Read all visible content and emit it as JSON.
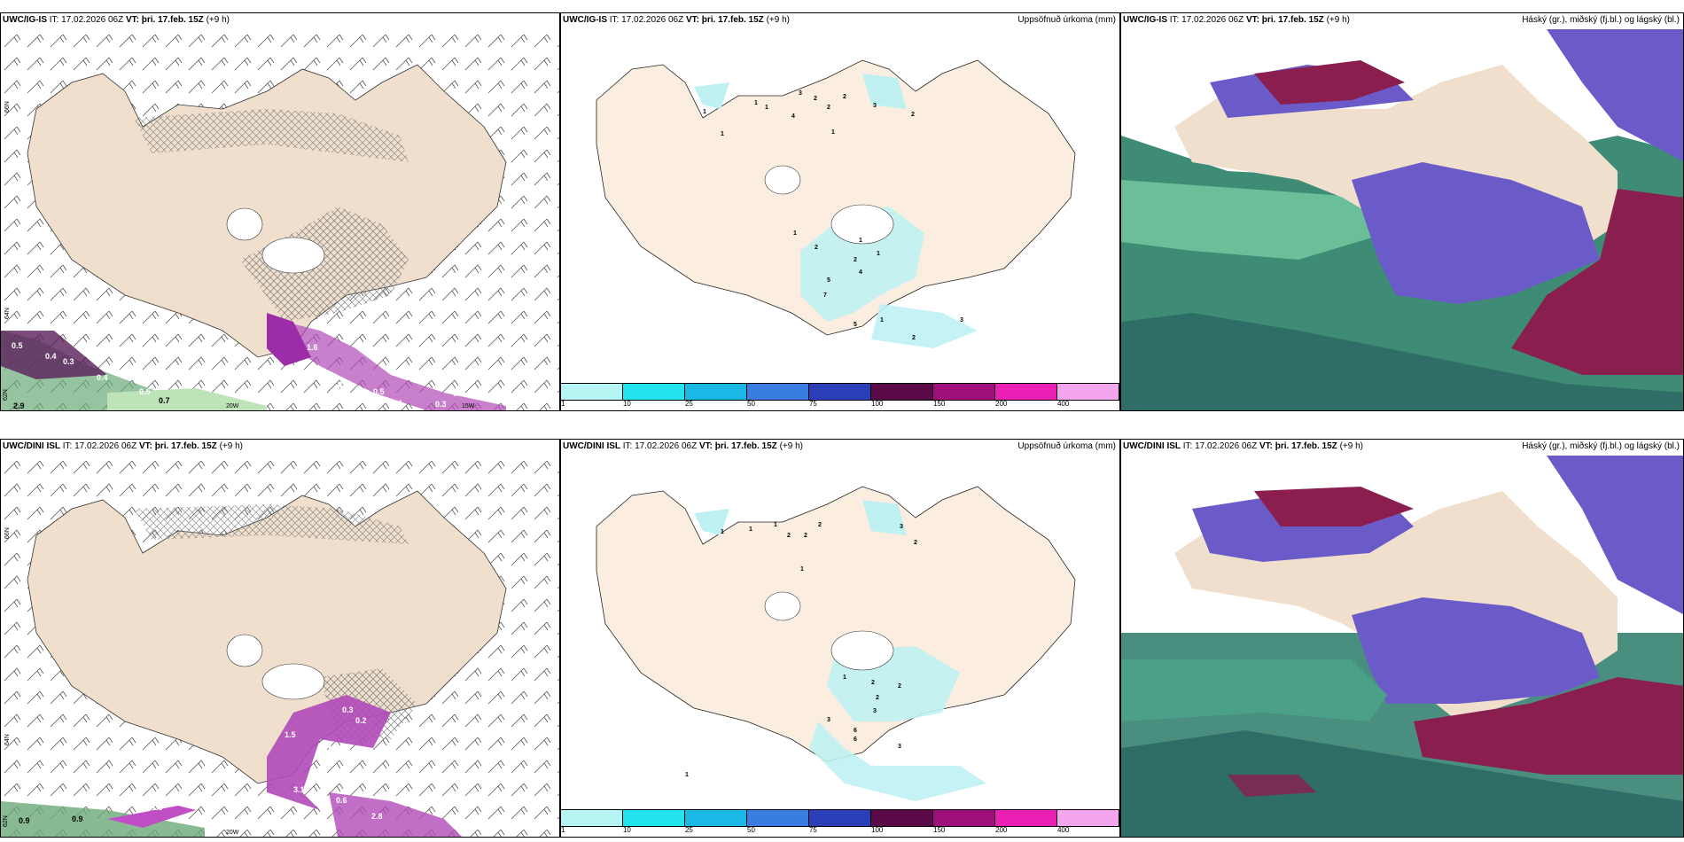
{
  "rows": [
    {
      "model": "UWC/IG-IS",
      "it_label": "IT:",
      "it_value": "17.02.2026 06Z",
      "vt_label": "VT:",
      "vt_value": "þri. 17.feb. 15Z",
      "lead": "(+9 h)"
    },
    {
      "model": "UWC/DINI ISL",
      "it_label": "IT:",
      "it_value": "17.02.2026 06Z",
      "vt_label": "VT:",
      "vt_value": "þri. 17.feb. 15Z",
      "lead": "(+9 h)"
    }
  ],
  "panel_titles": {
    "precip": "Uppsöfnuð úrkoma (mm)",
    "clouds": "Háský (gr.), miðský (fj.bl.) og lágský (bl.)"
  },
  "axis_labels": {
    "lat_66": "66N",
    "lat_64": "64N",
    "lat_62": "62N",
    "lon_20": "20W",
    "lon_15": "15W"
  },
  "legend": {
    "ticks": [
      "1",
      "10",
      "25",
      "50",
      "75",
      "100",
      "150",
      "200",
      "400"
    ],
    "colors": [
      "#b7f4f4",
      "#22e3ee",
      "#1ab8e4",
      "#3a7de0",
      "#2b3fb8",
      "#5a0a48",
      "#9e0f7c",
      "#ea20b4",
      "#f3a6ee"
    ]
  },
  "colors": {
    "land": "#efdfcc",
    "precip_land": "#fbeee0",
    "wind_purple": "#b04ab8",
    "precip_cyan": "#bff1f3",
    "cloud_high": "#6a5bc8",
    "cloud_mid": "#8a1e4e",
    "cloud_low": "#3f8c76"
  },
  "wind_values": {
    "row0": [
      "0.5",
      "0.4",
      "0.3",
      "0.4",
      "0.5",
      "1.6",
      "3.4",
      "0.7",
      "0.5",
      "0.4",
      "0.3",
      "0.4",
      "2.9",
      "0.7"
    ],
    "row1": [
      "0.9",
      "0.3",
      "0.2",
      "0.5",
      "1.5",
      "1.5",
      "3.1",
      "0.6",
      "2.8",
      "0.9",
      "4.1"
    ]
  },
  "precip_values": {
    "row0": [
      "1",
      "1",
      "1",
      "1",
      "3",
      "2",
      "2",
      "2",
      "3",
      "4",
      "1",
      "2",
      "1",
      "2",
      "2",
      "1",
      "1",
      "4",
      "5",
      "7",
      "5",
      "1",
      "2",
      "3"
    ],
    "row1": [
      "1",
      "1",
      "1",
      "2",
      "2",
      "2",
      "1",
      "3",
      "2",
      "1",
      "2",
      "2",
      "2",
      "3",
      "6",
      "6",
      "3",
      "3",
      "1"
    ]
  }
}
